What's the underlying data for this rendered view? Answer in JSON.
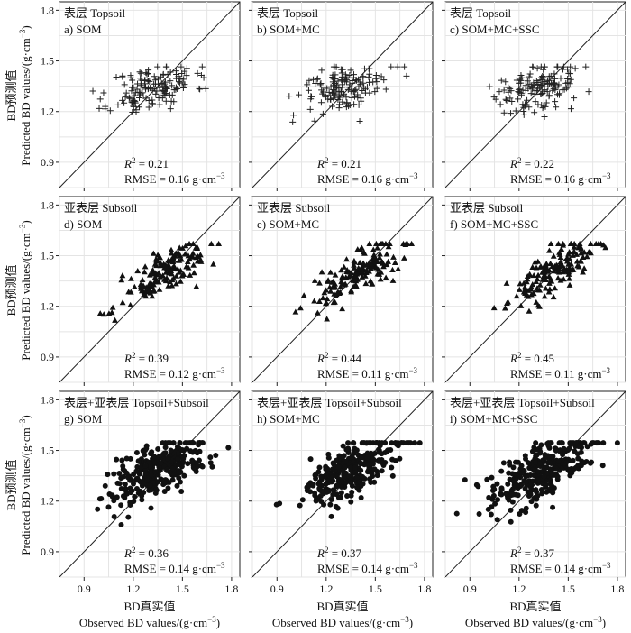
{
  "figure": {
    "y_label_cn": "BD预测值",
    "y_label_en": "Predicted BD values/(g·cm",
    "y_label_unit_sup": "−3",
    "y_label_close": ")",
    "x_label_cn": "BD真实值",
    "x_label_en": "Observed BD values/(g·cm",
    "x_label_unit_sup": "−3",
    "x_label_close": ")"
  },
  "chart_data": [
    {
      "type": "scatter",
      "marker": "plus",
      "layer": "表层 Topsoil",
      "title": "a) SOM",
      "r2_label": "R",
      "r2_value": " = 0.21",
      "rmse": "RMSE = 0.16 g·cm",
      "rmse_sup": "−3",
      "xlim": [
        0.75,
        1.85
      ],
      "ylim": [
        0.75,
        1.85
      ],
      "xticks": [
        "0.9",
        "1.2",
        "1.5",
        "1.8"
      ],
      "yticks": [
        "0.9",
        "1.2",
        "1.5",
        "1.8"
      ],
      "seed": 11,
      "n": 150
    },
    {
      "type": "scatter",
      "marker": "plus",
      "layer": "表层 Topsoil",
      "title": "b) SOM+MC",
      "r2_label": "R",
      "r2_value": " = 0.21",
      "rmse": "RMSE = 0.16 g·cm",
      "rmse_sup": "−3",
      "xlim": [
        0.75,
        1.85
      ],
      "ylim": [
        0.75,
        1.85
      ],
      "xticks": [
        "0.9",
        "1.2",
        "1.5",
        "1.8"
      ],
      "yticks": [
        "0.9",
        "1.2",
        "1.5",
        "1.8"
      ],
      "seed": 12,
      "n": 150
    },
    {
      "type": "scatter",
      "marker": "plus",
      "layer": "表层 Topsoil",
      "title": "c) SOM+MC+SSC",
      "r2_label": "R",
      "r2_value": " = 0.22",
      "rmse": "RMSE = 0.16 g·cm",
      "rmse_sup": "−3",
      "xlim": [
        0.75,
        1.85
      ],
      "ylim": [
        0.75,
        1.85
      ],
      "xticks": [
        "0.9",
        "1.2",
        "1.5",
        "1.8"
      ],
      "yticks": [
        "0.9",
        "1.2",
        "1.5",
        "1.8"
      ],
      "seed": 13,
      "n": 150
    },
    {
      "type": "scatter",
      "marker": "triangle",
      "layer": "亚表层 Subsoil",
      "title": "d) SOM",
      "r2_label": "R",
      "r2_value": " = 0.39",
      "rmse": "RMSE = 0.12 g·cm",
      "rmse_sup": "−3",
      "xlim": [
        0.75,
        1.85
      ],
      "ylim": [
        0.75,
        1.85
      ],
      "xticks": [
        "0.9",
        "1.2",
        "1.5",
        "1.8"
      ],
      "yticks": [
        "0.9",
        "1.2",
        "1.5",
        "1.8"
      ],
      "seed": 21,
      "n": 160
    },
    {
      "type": "scatter",
      "marker": "triangle",
      "layer": "亚表层 Subsoil",
      "title": "e) SOM+MC",
      "r2_label": "R",
      "r2_value": " = 0.44",
      "rmse": "RMSE = 0.11 g·cm",
      "rmse_sup": "−3",
      "xlim": [
        0.75,
        1.85
      ],
      "ylim": [
        0.75,
        1.85
      ],
      "xticks": [
        "0.9",
        "1.2",
        "1.5",
        "1.8"
      ],
      "yticks": [
        "0.9",
        "1.2",
        "1.5",
        "1.8"
      ],
      "seed": 22,
      "n": 160
    },
    {
      "type": "scatter",
      "marker": "triangle",
      "layer": "亚表层 Subsoil",
      "title": "f) SOM+MC+SSC",
      "r2_label": "R",
      "r2_value": " = 0.45",
      "rmse": "RMSE = 0.11 g·cm",
      "rmse_sup": "−3",
      "xlim": [
        0.75,
        1.85
      ],
      "ylim": [
        0.75,
        1.85
      ],
      "xticks": [
        "0.9",
        "1.2",
        "1.5",
        "1.8"
      ],
      "yticks": [
        "0.9",
        "1.2",
        "1.5",
        "1.8"
      ],
      "seed": 23,
      "n": 160
    },
    {
      "type": "scatter",
      "marker": "dot",
      "layer": "表层+亚表层 Topsoil+Subsoil",
      "title": "g) SOM",
      "r2_label": "R",
      "r2_value": " = 0.36",
      "rmse": "RMSE = 0.14 g·cm",
      "rmse_sup": "−3",
      "xlim": [
        0.75,
        1.85
      ],
      "ylim": [
        0.75,
        1.85
      ],
      "xticks": [
        "0.9",
        "1.2",
        "1.5",
        "1.8"
      ],
      "yticks": [
        "0.9",
        "1.2",
        "1.5",
        "1.8"
      ],
      "seed": 31,
      "n": 300
    },
    {
      "type": "scatter",
      "marker": "dot",
      "layer": "表层+亚表层 Topsoil+Subsoil",
      "title": "h) SOM+MC",
      "r2_label": "R",
      "r2_value": " = 0.37",
      "rmse": "RMSE = 0.14 g·cm",
      "rmse_sup": "−3",
      "xlim": [
        0.75,
        1.85
      ],
      "ylim": [
        0.75,
        1.85
      ],
      "xticks": [
        "0.9",
        "1.2",
        "1.5",
        "1.8"
      ],
      "yticks": [
        "0.9",
        "1.2",
        "1.5",
        "1.8"
      ],
      "seed": 32,
      "n": 300
    },
    {
      "type": "scatter",
      "marker": "dot",
      "layer": "表层+亚表层 Topsoil+Subsoil",
      "title": "i) SOM+MC+SSC",
      "r2_label": "R",
      "r2_value": " = 0.37",
      "rmse": "RMSE = 0.14 g·cm",
      "rmse_sup": "−3",
      "xlim": [
        0.75,
        1.85
      ],
      "ylim": [
        0.75,
        1.85
      ],
      "xticks": [
        "0.9",
        "1.2",
        "1.5",
        "1.8"
      ],
      "yticks": [
        "0.9",
        "1.2",
        "1.5",
        "1.8"
      ],
      "seed": 33,
      "n": 300
    }
  ]
}
